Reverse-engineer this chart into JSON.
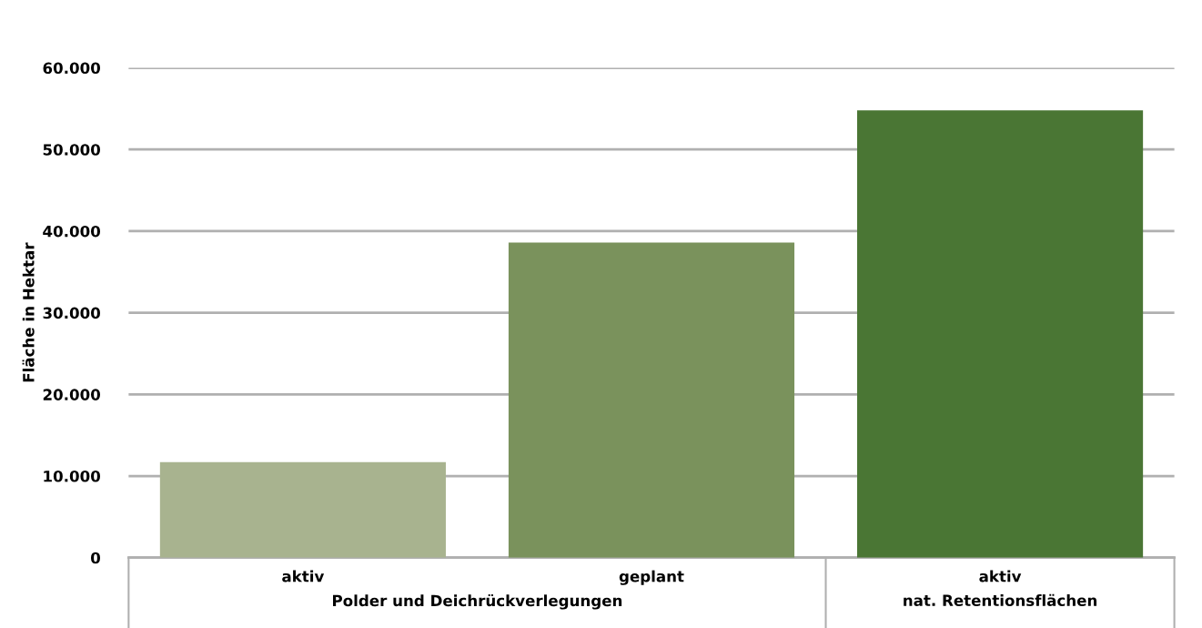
{
  "chart_data": {
    "type": "bar",
    "ylabel": "Fläche in Hektar",
    "categories": [
      "aktiv",
      "geplant",
      "aktiv"
    ],
    "values": [
      11700,
      38600,
      54800
    ],
    "colors": [
      "#a8b38f",
      "#7a925c",
      "#4a7634"
    ],
    "ylim": [
      0,
      60000
    ],
    "yticks": [
      {
        "value": 0,
        "label": "0"
      },
      {
        "value": 10000,
        "label": "10.000"
      },
      {
        "value": 20000,
        "label": "20.000"
      },
      {
        "value": 30000,
        "label": "30.000"
      },
      {
        "value": 40000,
        "label": "40.000"
      },
      {
        "value": 50000,
        "label": "50.000"
      },
      {
        "value": 60000,
        "label": "60.000"
      }
    ],
    "grid": "y",
    "annotations": [
      "Polder und Deichrückverlegungen",
      "nat. Retentionsflächen"
    ]
  }
}
